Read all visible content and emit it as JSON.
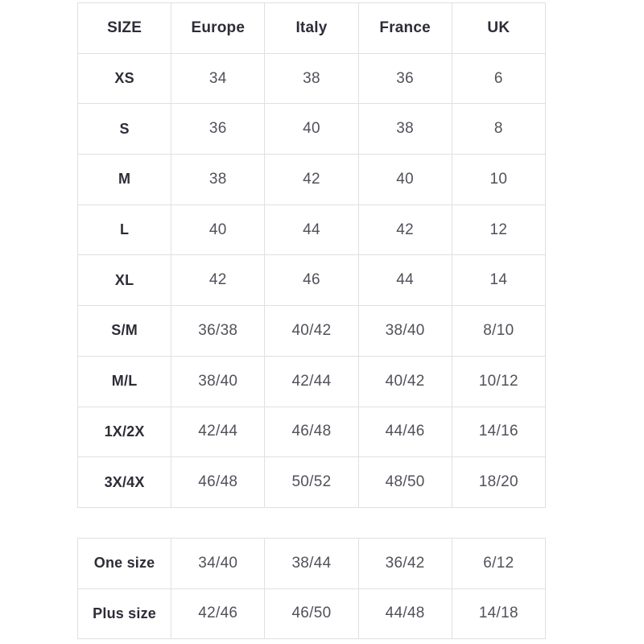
{
  "main": {
    "headers": [
      "SIZE",
      "Europe",
      "Italy",
      "France",
      "UK"
    ],
    "rows": [
      [
        "XS",
        "34",
        "38",
        "36",
        "6"
      ],
      [
        "S",
        "36",
        "40",
        "38",
        "8"
      ],
      [
        "M",
        "38",
        "42",
        "40",
        "10"
      ],
      [
        "L",
        "40",
        "44",
        "42",
        "12"
      ],
      [
        "XL",
        "42",
        "46",
        "44",
        "14"
      ],
      [
        "S/M",
        "36/38",
        "40/42",
        "38/40",
        "8/10"
      ],
      [
        "M/L",
        "38/40",
        "42/44",
        "40/42",
        "10/12"
      ],
      [
        "1X/2X",
        "42/44",
        "46/48",
        "44/46",
        "14/16"
      ],
      [
        "3X/4X",
        "46/48",
        "50/52",
        "48/50",
        "18/20"
      ]
    ]
  },
  "extra": {
    "rows": [
      [
        "One size",
        "34/40",
        "38/44",
        "36/42",
        "6/12"
      ],
      [
        "Plus size",
        "42/46",
        "46/50",
        "44/48",
        "14/18"
      ]
    ]
  },
  "colors": {
    "background": "#ffffff",
    "border": "#e0e0e0",
    "header_text": "#2d2d38",
    "value_text": "#51515b"
  }
}
